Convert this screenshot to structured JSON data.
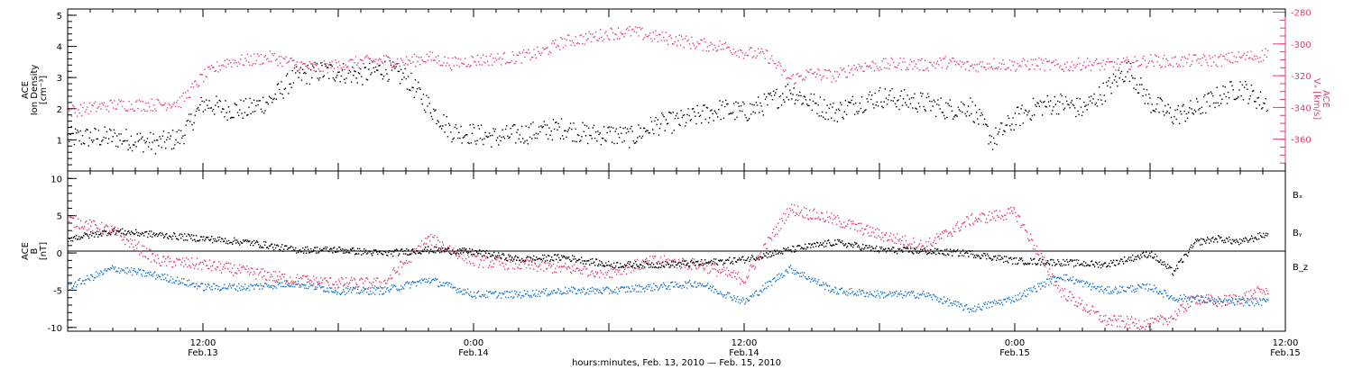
{
  "colors": {
    "black": "#000000",
    "pink": "#e8436e",
    "blue": "#1a7bd6",
    "pink_axis": "#e0406a"
  },
  "chart_data": [
    {
      "type": "scatter",
      "panel": "top",
      "ylabel_left": [
        "ACE",
        "Ion Density",
        "[cm⁻³]"
      ],
      "ylabel_right": [
        "ACE",
        "Vₓ [km/s]"
      ],
      "ylim_left": [
        0,
        5.2
      ],
      "ylim_right": [
        -380,
        -278
      ],
      "left_ticks": [
        "1",
        "2",
        "3",
        "4",
        "5"
      ],
      "right_ticks": [
        "-280",
        "-300",
        "-320",
        "-340",
        "-360"
      ],
      "xlim_hours": [
        0,
        54
      ],
      "series": [
        {
          "axis": "left",
          "color": "#000000",
          "x": [
            0,
            2,
            4,
            5,
            6,
            7,
            8,
            9,
            10,
            11,
            12,
            13,
            14,
            15,
            16,
            17,
            18,
            19,
            20,
            21,
            22,
            23,
            24,
            25,
            26,
            27,
            28,
            29,
            30,
            31,
            32,
            33,
            34,
            35,
            36,
            37,
            38,
            39,
            40,
            41,
            42,
            43,
            44,
            45,
            46,
            47,
            48,
            49,
            50,
            51,
            52,
            53,
            54
          ],
          "y": [
            1.1,
            1.1,
            0.9,
            1.1,
            2.2,
            2.0,
            2.0,
            2.3,
            3.0,
            3.2,
            3.2,
            3.1,
            3.3,
            3.0,
            2.1,
            1.3,
            1.2,
            1.1,
            1.2,
            1.3,
            1.4,
            1.2,
            1.2,
            1.1,
            1.5,
            1.6,
            1.8,
            2.0,
            1.9,
            2.2,
            2.6,
            2.2,
            1.9,
            2.2,
            2.4,
            2.3,
            2.2,
            2.0,
            2.1,
            1.0,
            1.7,
            2.1,
            2.2,
            2.0,
            2.6,
            3.3,
            2.2,
            1.8,
            2.0,
            2.4,
            2.7,
            2.2,
            2.3
          ]
        },
        {
          "axis": "right",
          "color": "#e8436e",
          "x": [
            0,
            2,
            4,
            5,
            6,
            7,
            8,
            9,
            10,
            11,
            12,
            13,
            14,
            15,
            16,
            17,
            18,
            19,
            20,
            21,
            22,
            23,
            24,
            25,
            26,
            27,
            28,
            29,
            30,
            31,
            32,
            33,
            34,
            35,
            36,
            37,
            38,
            39,
            40,
            41,
            42,
            43,
            44,
            45,
            46,
            47,
            48,
            49,
            50,
            51,
            52,
            53,
            54
          ],
          "y": [
            -342,
            -338,
            -338,
            -336,
            -320,
            -311,
            -310,
            -308,
            -312,
            -315,
            -313,
            -311,
            -310,
            -311,
            -308,
            -312,
            -310,
            -309,
            -308,
            -305,
            -298,
            -296,
            -293,
            -292,
            -295,
            -297,
            -300,
            -301,
            -305,
            -307,
            -322,
            -318,
            -320,
            -314,
            -313,
            -312,
            -313,
            -311,
            -314,
            -312,
            -313,
            -312,
            -314,
            -312,
            -313,
            -312,
            -310,
            -311,
            -310,
            -310,
            -308,
            -307,
            -290
          ]
        }
      ]
    },
    {
      "type": "scatter",
      "panel": "bottom",
      "ylabel_left": [
        "ACE",
        "B",
        "[nT]"
      ],
      "ylim": [
        -10.5,
        11
      ],
      "ticks": [
        "10",
        "5",
        "0",
        "-5",
        "-10"
      ],
      "zero_line": true,
      "legend": [
        "Bₓ",
        "Bᵧ",
        "B_z"
      ],
      "legend_colors": [
        "#000000",
        "#1a7bd6",
        "#e8436e"
      ],
      "xlim_hours": [
        0,
        54
      ],
      "series": [
        {
          "name": "Bₓ",
          "color": "#000000",
          "x": [
            0,
            2,
            4,
            6,
            8,
            10,
            12,
            14,
            16,
            18,
            20,
            22,
            24,
            26,
            28,
            30,
            32,
            34,
            36,
            38,
            40,
            42,
            44,
            46,
            48,
            49,
            50,
            51,
            52,
            53
          ],
          "y": [
            2.0,
            3.0,
            2.5,
            2.0,
            1.5,
            0.5,
            0.5,
            0.0,
            0.5,
            0.2,
            -0.8,
            -0.5,
            -1.5,
            -1.5,
            -1.3,
            -0.8,
            0.5,
            1.5,
            0.5,
            0.3,
            0.0,
            -1.0,
            -1.2,
            -1.5,
            0.0,
            -2.5,
            1.5,
            2.0,
            1.5,
            2.5
          ]
        },
        {
          "name": "Bᵧ",
          "color": "#1a7bd6",
          "x": [
            0,
            2,
            4,
            6,
            8,
            10,
            12,
            14,
            16,
            18,
            20,
            22,
            24,
            26,
            28,
            30,
            32,
            34,
            36,
            38,
            40,
            42,
            44,
            46,
            48,
            49,
            50,
            51,
            52,
            53
          ],
          "y": [
            -4.5,
            -2.0,
            -3.0,
            -4.5,
            -4.5,
            -4.0,
            -5.0,
            -5.0,
            -3.5,
            -5.5,
            -5.5,
            -5.0,
            -5.0,
            -4.5,
            -4.0,
            -6.5,
            -2.0,
            -5.0,
            -5.5,
            -5.5,
            -7.5,
            -6.0,
            -3.0,
            -5.0,
            -4.5,
            -6.0,
            -6.0,
            -6.5,
            -6.5,
            -6.5
          ]
        },
        {
          "name": "B_z",
          "color": "#e8436e",
          "x": [
            0,
            2,
            4,
            6,
            8,
            10,
            12,
            14,
            16,
            18,
            20,
            22,
            24,
            26,
            28,
            30,
            32,
            34,
            36,
            38,
            40,
            42,
            44,
            46,
            48,
            49,
            50,
            51,
            52,
            53
          ],
          "y": [
            4.5,
            3.0,
            -1.0,
            -1.5,
            -2.5,
            -3.5,
            -4.0,
            -4.0,
            2.0,
            -1.0,
            -1.5,
            -2.0,
            -2.5,
            -1.0,
            -1.5,
            -3.5,
            6.0,
            4.5,
            2.5,
            1.0,
            4.5,
            5.5,
            -5.0,
            -9.0,
            -9.5,
            -8.5,
            -6.0,
            -6.5,
            -6.0,
            -5.0
          ]
        }
      ]
    }
  ],
  "x_axis": {
    "ticks": [
      {
        "hour": 0,
        "label": "",
        "date": ""
      },
      {
        "hour": 6,
        "label": "12:00",
        "date": "Feb.13"
      },
      {
        "hour": 18,
        "label": "0:00",
        "date": "Feb.14"
      },
      {
        "hour": 30,
        "label": "12:00",
        "date": "Feb.14"
      },
      {
        "hour": 42,
        "label": "0:00",
        "date": "Feb.15"
      },
      {
        "hour": 54,
        "label": "12:00",
        "date": "Feb.15"
      }
    ],
    "xlabel": "hours:minutes, Feb. 13, 2010 — Feb. 15, 2010"
  }
}
